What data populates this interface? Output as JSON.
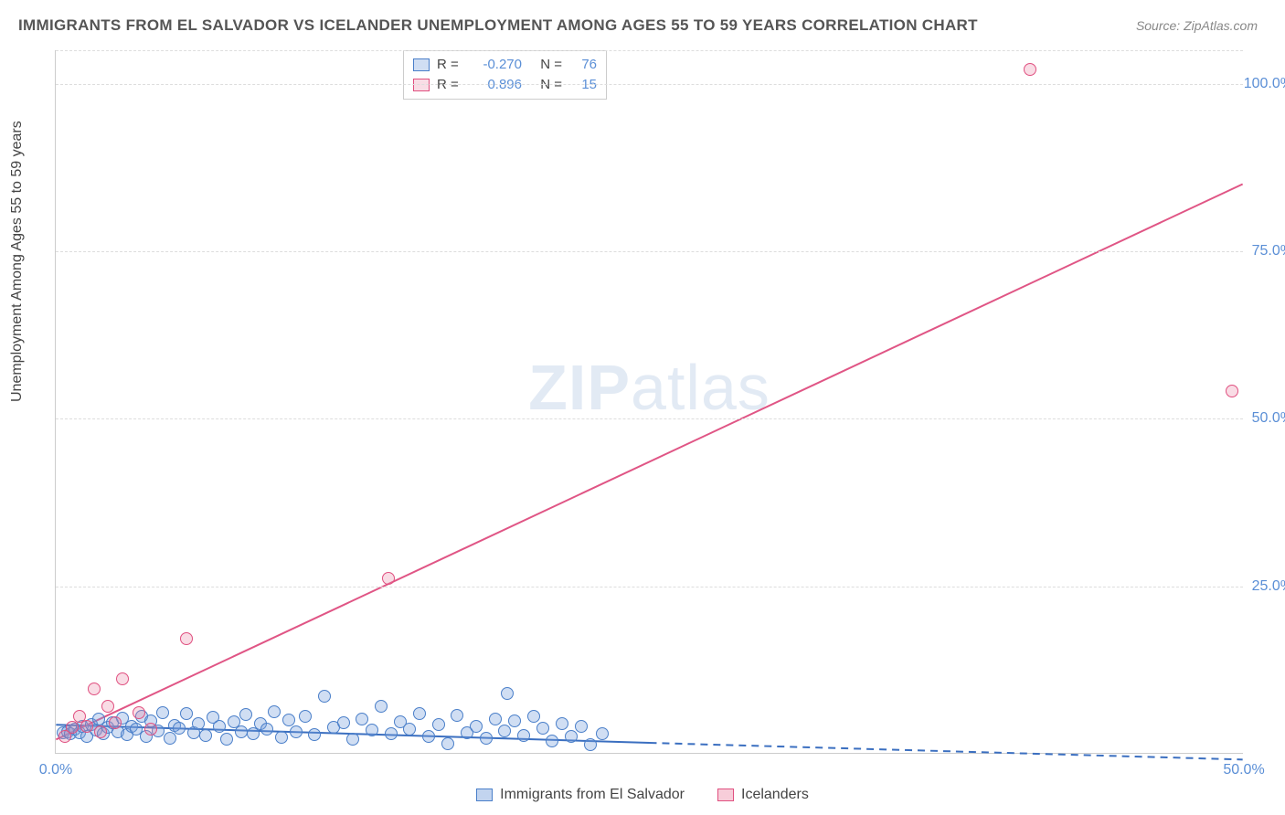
{
  "title": "IMMIGRANTS FROM EL SALVADOR VS ICELANDER UNEMPLOYMENT AMONG AGES 55 TO 59 YEARS CORRELATION CHART",
  "source_label": "Source: ZipAtlas.com",
  "y_axis_label": "Unemployment Among Ages 55 to 59 years",
  "watermark_zip": "ZIP",
  "watermark_atlas": "atlas",
  "chart": {
    "type": "scatter",
    "xlim": [
      0,
      50
    ],
    "ylim": [
      0,
      105
    ],
    "x_ticks": [
      0.0,
      50.0
    ],
    "x_tick_labels": [
      "0.0%",
      "50.0%"
    ],
    "y_ticks": [
      25.0,
      50.0,
      75.0,
      100.0
    ],
    "y_tick_labels": [
      "25.0%",
      "50.0%",
      "75.0%",
      "100.0%"
    ],
    "grid_color": "#dddddd",
    "background_color": "#ffffff",
    "marker_radius": 7,
    "marker_stroke_width": 1.2,
    "line_width": 2,
    "series": [
      {
        "name": "Immigrants from El Salvador",
        "fill": "rgba(120,160,220,0.35)",
        "stroke": "#4a7fc9",
        "line_color": "#3b6fc0",
        "R": "-0.270",
        "N": "76",
        "trend": {
          "x1": 0,
          "y1": 4.2,
          "x2": 25,
          "y2": 1.5,
          "dash_x2": 50,
          "dash_y2": -1.0
        },
        "points": [
          [
            0.3,
            3.0
          ],
          [
            0.5,
            3.2
          ],
          [
            0.6,
            2.8
          ],
          [
            0.8,
            3.5
          ],
          [
            1.0,
            3.0
          ],
          [
            1.1,
            4.0
          ],
          [
            1.3,
            2.5
          ],
          [
            1.5,
            4.2
          ],
          [
            1.7,
            3.4
          ],
          [
            1.8,
            5.0
          ],
          [
            2.0,
            2.9
          ],
          [
            2.2,
            3.8
          ],
          [
            2.4,
            4.5
          ],
          [
            2.6,
            3.1
          ],
          [
            2.8,
            5.2
          ],
          [
            3.0,
            2.7
          ],
          [
            3.2,
            4.0
          ],
          [
            3.4,
            3.6
          ],
          [
            3.6,
            5.5
          ],
          [
            3.8,
            2.4
          ],
          [
            4.0,
            4.8
          ],
          [
            4.3,
            3.3
          ],
          [
            4.5,
            6.0
          ],
          [
            4.8,
            2.2
          ],
          [
            5.0,
            4.1
          ],
          [
            5.2,
            3.7
          ],
          [
            5.5,
            5.8
          ],
          [
            5.8,
            3.0
          ],
          [
            6.0,
            4.4
          ],
          [
            6.3,
            2.6
          ],
          [
            6.6,
            5.3
          ],
          [
            6.9,
            3.9
          ],
          [
            7.2,
            2.1
          ],
          [
            7.5,
            4.6
          ],
          [
            7.8,
            3.2
          ],
          [
            8.0,
            5.7
          ],
          [
            8.3,
            2.8
          ],
          [
            8.6,
            4.3
          ],
          [
            8.9,
            3.5
          ],
          [
            9.2,
            6.2
          ],
          [
            9.5,
            2.3
          ],
          [
            9.8,
            4.9
          ],
          [
            10.1,
            3.1
          ],
          [
            10.5,
            5.4
          ],
          [
            10.9,
            2.7
          ],
          [
            11.3,
            8.5
          ],
          [
            11.7,
            3.8
          ],
          [
            12.1,
            4.5
          ],
          [
            12.5,
            2.0
          ],
          [
            12.9,
            5.1
          ],
          [
            13.3,
            3.4
          ],
          [
            13.7,
            7.0
          ],
          [
            14.1,
            2.9
          ],
          [
            14.5,
            4.7
          ],
          [
            14.9,
            3.6
          ],
          [
            15.3,
            5.9
          ],
          [
            15.7,
            2.5
          ],
          [
            16.1,
            4.2
          ],
          [
            16.5,
            1.4
          ],
          [
            16.9,
            5.6
          ],
          [
            17.3,
            3.0
          ],
          [
            17.7,
            4.0
          ],
          [
            18.1,
            2.2
          ],
          [
            18.5,
            5.0
          ],
          [
            18.9,
            3.3
          ],
          [
            19.0,
            8.8
          ],
          [
            19.3,
            4.8
          ],
          [
            19.7,
            2.6
          ],
          [
            20.1,
            5.5
          ],
          [
            20.5,
            3.7
          ],
          [
            20.9,
            1.8
          ],
          [
            21.3,
            4.4
          ],
          [
            21.7,
            2.4
          ],
          [
            22.1,
            3.9
          ],
          [
            22.5,
            1.2
          ],
          [
            23.0,
            2.8
          ]
        ]
      },
      {
        "name": "Icelanders",
        "fill": "rgba(235,130,160,0.28)",
        "stroke": "#e05080",
        "line_color": "#e05585",
        "R": "0.896",
        "N": "15",
        "trend": {
          "x1": 0,
          "y1": 2.0,
          "x2": 50,
          "y2": 85.0
        },
        "points": [
          [
            0.4,
            2.5
          ],
          [
            0.7,
            3.8
          ],
          [
            1.0,
            5.5
          ],
          [
            1.3,
            4.0
          ],
          [
            1.6,
            9.5
          ],
          [
            1.9,
            3.2
          ],
          [
            2.2,
            7.0
          ],
          [
            2.5,
            4.5
          ],
          [
            2.8,
            11.0
          ],
          [
            3.5,
            6.0
          ],
          [
            4.0,
            3.5
          ],
          [
            5.5,
            17.0
          ],
          [
            14.0,
            26.0
          ],
          [
            41.0,
            102.0
          ],
          [
            49.5,
            54.0
          ]
        ]
      }
    ]
  },
  "legend_bottom": [
    {
      "label": "Immigrants from El Salvador",
      "fill": "rgba(120,160,220,0.45)",
      "stroke": "#4a7fc9"
    },
    {
      "label": "Icelanders",
      "fill": "rgba(235,130,160,0.4)",
      "stroke": "#e05080"
    }
  ]
}
